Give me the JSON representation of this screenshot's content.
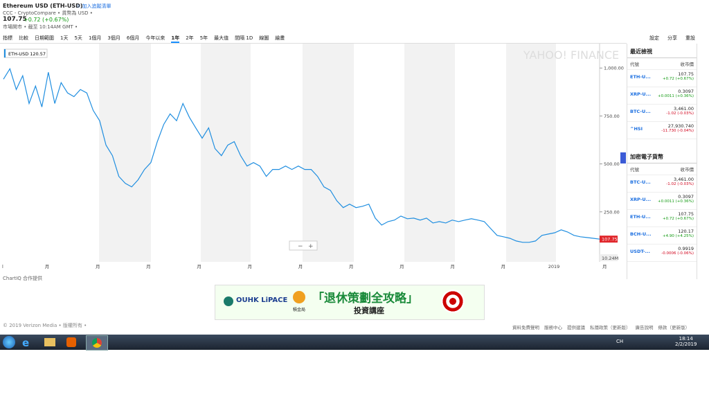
{
  "header": {
    "title": "Ethereum USD (ETH-USD)",
    "watch": "☆ 加入追蹤清單",
    "source": "CCC - CryptoCompare • 貨幣為 USD •",
    "price": "107.75",
    "change": "+0.72 (+0.67%)",
    "status": "市場開市 • 截至 10:14AM GMT •"
  },
  "toolbar": {
    "left": [
      "指標",
      "比較",
      "日期範圍",
      "1天",
      "5天",
      "1個月",
      "3個月",
      "6個月",
      "今年以來",
      "1年",
      "2年",
      "5年",
      "最大值",
      "間隔 1D",
      "線圖",
      "繪畫"
    ],
    "right": [
      "設定",
      "分享",
      "重設"
    ]
  },
  "chart": {
    "legend": "ETH-USD  120.57",
    "watermark": "YAHOO! FINANCE",
    "color": "#1f8ee0",
    "values": [
      942,
      996,
      888,
      960,
      815,
      906,
      797,
      978,
      815,
      924,
      870,
      851,
      888,
      870,
      779,
      725,
      598,
      543,
      435,
      399,
      380,
      417,
      471,
      507,
      616,
      706,
      761,
      725,
      815,
      743,
      688,
      634,
      688,
      580,
      543,
      598,
      616,
      543,
      489,
      507,
      489,
      435,
      471,
      471,
      489,
      471,
      489,
      471,
      471,
      435,
      380,
      362,
      308,
      272,
      290,
      272,
      279,
      290,
      217,
      181,
      199,
      207,
      228,
      214,
      217,
      207,
      217,
      192,
      199,
      192,
      207,
      199,
      207,
      214,
      207,
      199,
      163,
      127,
      120,
      112,
      98,
      91,
      91,
      98,
      127,
      134,
      141,
      156,
      145,
      127,
      120,
      116,
      112,
      107.75
    ],
    "ylim": [
      0,
      1120
    ],
    "yticks": [
      {
        "value": 250,
        "label": "250.00"
      },
      {
        "value": 500,
        "label": "500.00"
      },
      {
        "value": 750,
        "label": "750.00"
      },
      {
        "value": 1000,
        "label": "1,000.00"
      }
    ],
    "x_labels": [
      "l",
      "月",
      "月",
      "月",
      "月",
      "月",
      "月",
      "月",
      "月",
      "月",
      "月",
      "2019",
      "月"
    ],
    "price_tag": "107.75",
    "volume_label": "10.24M",
    "credit": "ChartIQ 合作提供"
  },
  "sidebar": {
    "sections": [
      {
        "title": "最近檢視",
        "col1": "代號",
        "col2": "收市價",
        "rows": [
          [
            "ETH-U...",
            "107.75",
            "+0.72 (+0.67%)"
          ],
          [
            "XRP-U...",
            "0.3097",
            "+0.0011 (+0.36%)"
          ],
          [
            "BTC-U...",
            "3,461.00",
            "-1.02 (-0.03%)"
          ],
          [
            "^HSI",
            "27,930.740",
            "-11.730 (-0.04%)"
          ]
        ]
      },
      {
        "title": "加密電子貨幣",
        "col1": "代號",
        "col2": "收市價",
        "rows": [
          [
            "BTC-U...",
            "3,461.00",
            "-1.02 (-0.03%)"
          ],
          [
            "XRP-U...",
            "0.3097",
            "+0.0011 (+0.36%)"
          ],
          [
            "ETH-U...",
            "107.75",
            "+0.72 (+0.67%)"
          ],
          [
            "BCH-U...",
            "120.17",
            "+4.90 (+4.25%)"
          ],
          [
            "USDT-...",
            "0.9919",
            "-0.0006 (-0.06%)"
          ]
        ]
      }
    ]
  },
  "ad": {
    "brand": "OUHK LiPACE",
    "partner": "積金局",
    "headline": "「退休策劃全攻略」",
    "sub": "投資講座"
  },
  "footer": {
    "copyright": "© 2019 Verizon Media • 版權所有 •",
    "links": [
      "資料免費聲明",
      "服務中心",
      "提供建議",
      "私隱政策（更新版）",
      "廣告說明",
      "條款（更新版）"
    ]
  },
  "taskbar": {
    "lang": "CH",
    "time": "18:14",
    "date": "2/2/2019"
  }
}
